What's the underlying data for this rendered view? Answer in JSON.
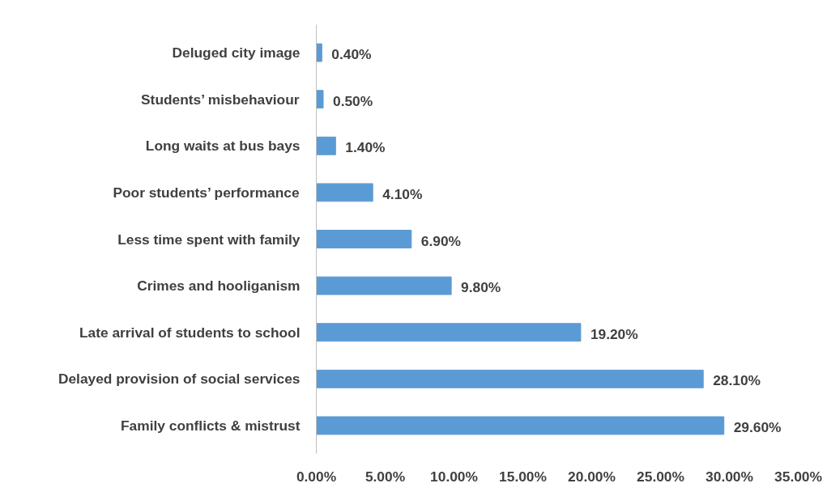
{
  "chart_data": {
    "type": "bar",
    "orientation": "horizontal",
    "categories": [
      "Deluged city image",
      "Students’ misbehaviour",
      "Long waits at bus bays",
      "Poor students’ performance",
      "Less time spent with family",
      "Crimes and hooliganism",
      "Late arrival of students to school",
      "Delayed provision of social services",
      "Family conflicts & mistrust"
    ],
    "values": [
      0.4,
      0.5,
      1.4,
      4.1,
      6.9,
      9.8,
      19.2,
      28.1,
      29.6
    ],
    "value_labels": [
      "0.40%",
      "0.50%",
      "1.40%",
      "4.10%",
      "6.90%",
      "9.80%",
      "19.20%",
      "28.10%",
      "29.60%"
    ],
    "color": "#5b9bd5",
    "xlim": [
      0,
      35
    ],
    "xticks": [
      {
        "value": 0,
        "label": "0.00%"
      },
      {
        "value": 5,
        "label": "5.00%"
      },
      {
        "value": 10,
        "label": "10.00%"
      },
      {
        "value": 15,
        "label": "15.00%"
      },
      {
        "value": 20,
        "label": "20.00%"
      },
      {
        "value": 25,
        "label": "25.00%"
      },
      {
        "value": 30,
        "label": "30.00%"
      },
      {
        "value": 35,
        "label": "35.00%"
      }
    ],
    "grid": false
  }
}
